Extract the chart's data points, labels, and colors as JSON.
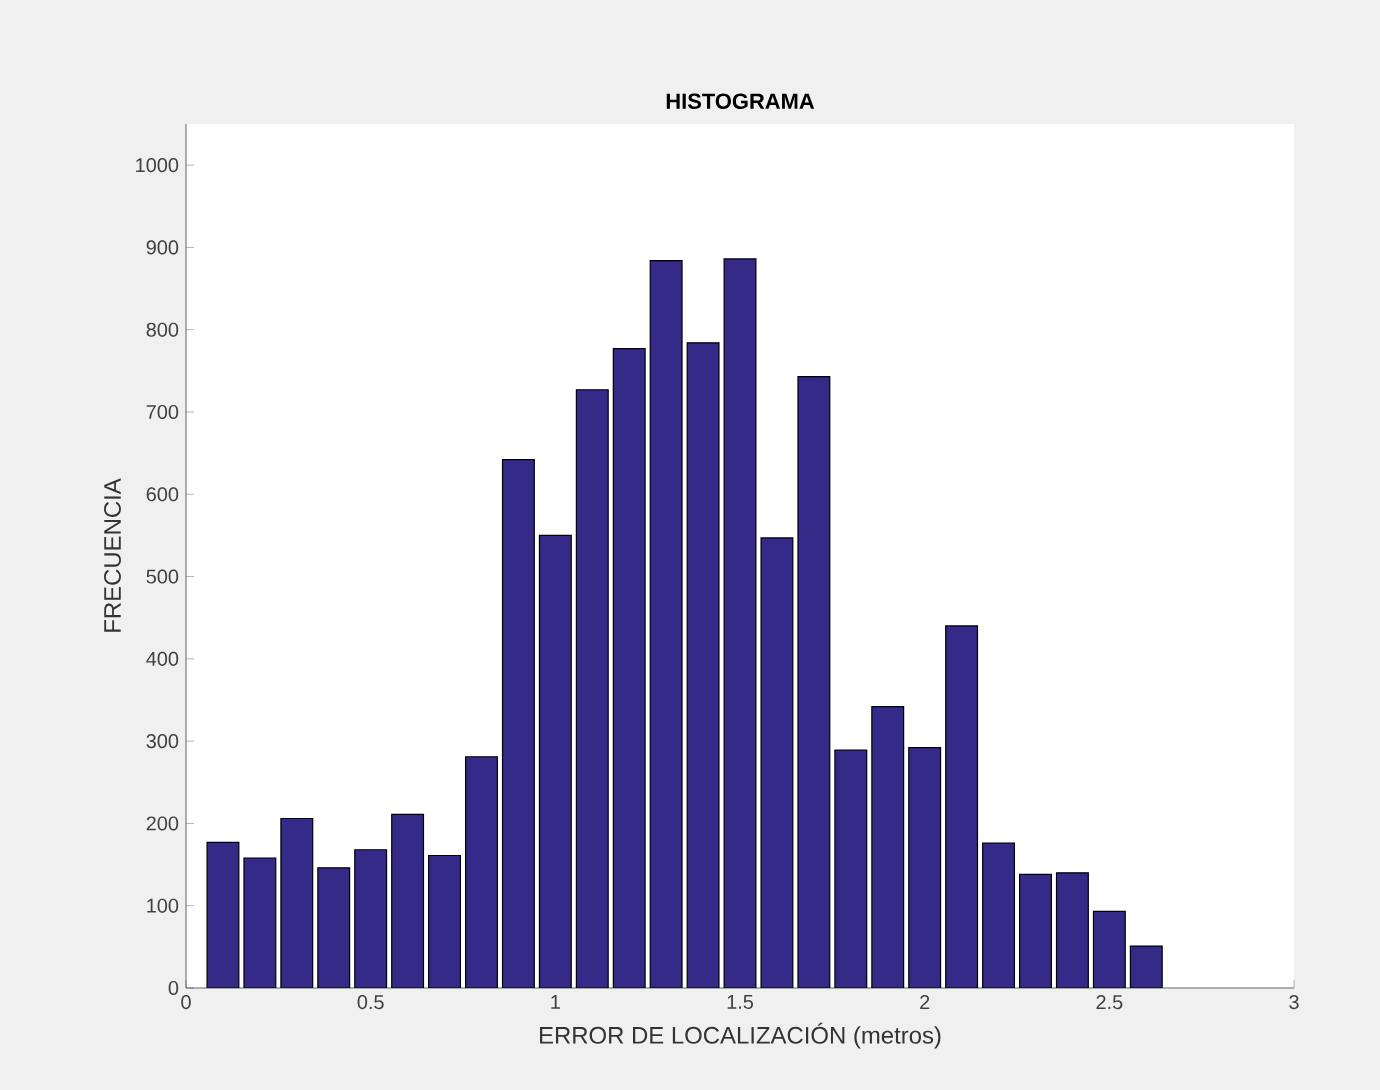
{
  "chart_data": {
    "type": "histogram",
    "title": "HISTOGRAMA",
    "xlabel": "ERROR DE LOCALIZACIÓN (metros)",
    "ylabel": "FRECUENCIA",
    "bins": [
      0.05,
      0.15,
      0.25,
      0.35,
      0.45,
      0.55,
      0.65,
      0.75,
      0.85,
      0.95,
      1.05,
      1.15,
      1.25,
      1.35,
      1.45,
      1.55,
      1.65,
      1.75,
      1.85,
      1.95,
      2.05,
      2.15,
      2.25,
      2.35,
      2.45,
      2.55,
      2.65
    ],
    "values": [
      177,
      158,
      206,
      146,
      168,
      211,
      161,
      281,
      642,
      550,
      727,
      777,
      884,
      784,
      886,
      547,
      743,
      289,
      342,
      292,
      440,
      176,
      138,
      140,
      93,
      51
    ],
    "color": "#352a87",
    "xlim": [
      0,
      3
    ],
    "ylim": [
      0,
      1050
    ],
    "xticks": [
      0,
      0.5,
      1,
      1.5,
      2,
      2.5,
      3
    ],
    "yticks": [
      0,
      100,
      200,
      300,
      400,
      500,
      600,
      700,
      800,
      900,
      1000
    ],
    "grid": false
  }
}
